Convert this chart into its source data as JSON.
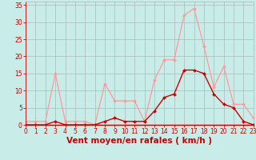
{
  "hours": [
    0,
    1,
    2,
    3,
    4,
    5,
    6,
    7,
    8,
    9,
    10,
    11,
    12,
    13,
    14,
    15,
    16,
    17,
    18,
    19,
    20,
    21,
    22,
    23
  ],
  "rafales": [
    1,
    1,
    1,
    15,
    1,
    1,
    1,
    0,
    12,
    7,
    7,
    7,
    1,
    13,
    19,
    19,
    32,
    34,
    23,
    11,
    17,
    6,
    6,
    2
  ],
  "moyen": [
    0,
    0,
    0,
    1,
    0,
    0,
    0,
    0,
    1,
    2,
    1,
    1,
    1,
    4,
    8,
    9,
    16,
    16,
    15,
    9,
    6,
    5,
    1,
    0
  ],
  "bg_color": "#c8ece8",
  "grid_color": "#aabbbb",
  "line_color_rafales": "#ff9999",
  "line_color_moyen": "#cc0000",
  "xlabel": "Vent moyen/en rafales ( km/h )",
  "ylim": [
    0,
    36
  ],
  "yticks": [
    0,
    5,
    10,
    15,
    20,
    25,
    30,
    35
  ],
  "xlim": [
    0,
    23
  ],
  "xlabel_color": "#cc0000",
  "tick_color": "#cc0000",
  "axis_color": "#cc0000",
  "spine_bottom_color": "#cc0000",
  "tick_fontsize": 5.5,
  "xlabel_fontsize": 7.5
}
